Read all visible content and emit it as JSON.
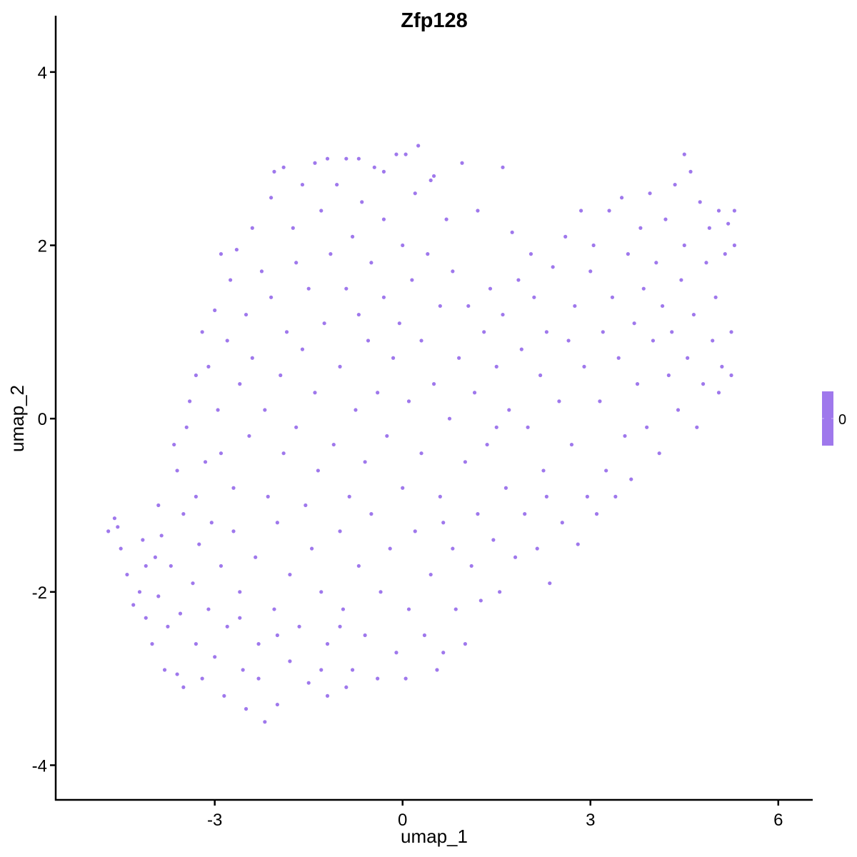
{
  "chart_data": {
    "type": "scatter",
    "title": "Zfp128",
    "xlabel": "umap_1",
    "ylabel": "umap_2",
    "xlim": [
      -5.54,
      6.55
    ],
    "ylim": [
      -4.4,
      4.65
    ],
    "xticks": [
      -3,
      0,
      3,
      6
    ],
    "yticks": [
      -4,
      -2,
      0,
      2,
      4
    ],
    "xtick_labels": [
      "-3",
      "0",
      "3",
      "6"
    ],
    "ytick_labels": [
      "-4",
      "-2",
      "0",
      "2",
      "4"
    ],
    "grid": false,
    "point_color": "#9f78ec",
    "legend": {
      "placement": "right",
      "type": "colorbar",
      "labels": [
        "0"
      ],
      "color": "#9f78ec"
    },
    "points": [
      [
        -4.7,
        -1.3
      ],
      [
        -4.6,
        -1.15
      ],
      [
        -4.55,
        -1.25
      ],
      [
        -4.5,
        -1.5
      ],
      [
        -4.4,
        -1.8
      ],
      [
        -4.3,
        -2.15
      ],
      [
        -4.2,
        -2.0
      ],
      [
        -4.15,
        -1.4
      ],
      [
        -4.1,
        -2.3
      ],
      [
        -4.0,
        -2.6
      ],
      [
        -3.95,
        -1.6
      ],
      [
        -3.9,
        -2.05
      ],
      [
        -3.85,
        -1.35
      ],
      [
        -3.8,
        -2.9
      ],
      [
        -3.75,
        -2.4
      ],
      [
        -3.7,
        -1.7
      ],
      [
        -3.65,
        -0.3
      ],
      [
        -3.6,
        -2.95
      ],
      [
        -3.55,
        -2.25
      ],
      [
        -3.5,
        -1.1
      ],
      [
        -3.5,
        -3.1
      ],
      [
        -3.45,
        -0.1
      ],
      [
        -3.4,
        0.2
      ],
      [
        -3.35,
        -1.9
      ],
      [
        -3.3,
        -2.6
      ],
      [
        -3.3,
        -0.9
      ],
      [
        -3.25,
        -1.45
      ],
      [
        -3.2,
        -3.0
      ],
      [
        -3.15,
        -0.5
      ],
      [
        -3.1,
        0.6
      ],
      [
        -3.1,
        -2.2
      ],
      [
        -3.05,
        -1.2
      ],
      [
        -3.0,
        -2.75
      ],
      [
        -3.0,
        1.25
      ],
      [
        -2.95,
        0.1
      ],
      [
        -2.9,
        -0.4
      ],
      [
        -2.9,
        -1.7
      ],
      [
        -2.85,
        -3.2
      ],
      [
        -2.8,
        0.9
      ],
      [
        -2.8,
        -2.4
      ],
      [
        -2.75,
        1.6
      ],
      [
        -2.7,
        -0.8
      ],
      [
        -2.7,
        -1.3
      ],
      [
        -2.65,
        1.95
      ],
      [
        -2.6,
        0.4
      ],
      [
        -2.6,
        -2.0
      ],
      [
        -2.55,
        -2.9
      ],
      [
        -2.5,
        -3.35
      ],
      [
        -2.5,
        1.2
      ],
      [
        -2.45,
        -0.2
      ],
      [
        -2.4,
        2.2
      ],
      [
        -2.4,
        0.7
      ],
      [
        -2.35,
        -1.6
      ],
      [
        -2.3,
        -2.6
      ],
      [
        -2.3,
        -3.0
      ],
      [
        -2.25,
        1.7
      ],
      [
        -2.2,
        -3.5
      ],
      [
        -2.2,
        0.1
      ],
      [
        -2.15,
        -0.9
      ],
      [
        -2.1,
        2.55
      ],
      [
        -2.1,
        1.4
      ],
      [
        -2.05,
        -2.2
      ],
      [
        -2.0,
        -1.2
      ],
      [
        -2.0,
        -3.3
      ],
      [
        -1.95,
        0.5
      ],
      [
        -1.9,
        2.9
      ],
      [
        -1.9,
        -0.4
      ],
      [
        -1.85,
        1.0
      ],
      [
        -1.8,
        -2.8
      ],
      [
        -1.8,
        -1.8
      ],
      [
        -1.75,
        2.2
      ],
      [
        -1.7,
        1.8
      ],
      [
        -1.7,
        -0.1
      ],
      [
        -1.65,
        -2.4
      ],
      [
        -1.6,
        2.7
      ],
      [
        -1.6,
        0.8
      ],
      [
        -1.55,
        -1.0
      ],
      [
        -1.5,
        -3.05
      ],
      [
        -1.5,
        1.5
      ],
      [
        -1.45,
        -1.5
      ],
      [
        -1.4,
        2.95
      ],
      [
        -1.4,
        0.3
      ],
      [
        -1.35,
        -0.6
      ],
      [
        -1.3,
        -2.0
      ],
      [
        -1.3,
        2.4
      ],
      [
        -1.25,
        1.1
      ],
      [
        -1.2,
        -2.6
      ],
      [
        -1.2,
        -3.2
      ],
      [
        -1.15,
        1.9
      ],
      [
        -1.1,
        -0.3
      ],
      [
        -1.05,
        2.7
      ],
      [
        -1.0,
        -1.3
      ],
      [
        -1.0,
        0.6
      ],
      [
        -0.95,
        -2.2
      ],
      [
        -0.9,
        1.5
      ],
      [
        -0.9,
        3.0
      ],
      [
        -0.85,
        -0.9
      ],
      [
        -0.8,
        2.1
      ],
      [
        -0.8,
        -2.9
      ],
      [
        -0.75,
        0.1
      ],
      [
        -0.7,
        -1.7
      ],
      [
        -0.7,
        1.2
      ],
      [
        -0.65,
        2.5
      ],
      [
        -0.6,
        -0.5
      ],
      [
        -0.6,
        -2.5
      ],
      [
        -0.55,
        0.9
      ],
      [
        -0.5,
        1.8
      ],
      [
        -0.5,
        -1.1
      ],
      [
        -0.45,
        2.9
      ],
      [
        -0.4,
        -3.0
      ],
      [
        -0.4,
        0.3
      ],
      [
        -0.35,
        -2.0
      ],
      [
        -0.3,
        1.4
      ],
      [
        -0.3,
        2.3
      ],
      [
        -0.25,
        -0.2
      ],
      [
        -0.2,
        -1.5
      ],
      [
        -0.15,
        0.7
      ],
      [
        -0.1,
        3.05
      ],
      [
        -0.1,
        -2.7
      ],
      [
        -0.05,
        1.1
      ],
      [
        0.0,
        -0.8
      ],
      [
        0.0,
        2.0
      ],
      [
        0.05,
        -3.0
      ],
      [
        0.1,
        0.2
      ],
      [
        0.1,
        -2.2
      ],
      [
        0.15,
        1.6
      ],
      [
        0.2,
        2.6
      ],
      [
        0.2,
        -1.3
      ],
      [
        0.25,
        3.15
      ],
      [
        0.3,
        -0.4
      ],
      [
        0.3,
        0.9
      ],
      [
        0.35,
        -2.5
      ],
      [
        0.4,
        1.9
      ],
      [
        0.45,
        -1.8
      ],
      [
        0.5,
        0.4
      ],
      [
        0.5,
        2.8
      ],
      [
        0.55,
        -2.9
      ],
      [
        0.6,
        -0.9
      ],
      [
        0.6,
        1.3
      ],
      [
        0.65,
        -2.7
      ],
      [
        0.7,
        2.3
      ],
      [
        0.75,
        0.0
      ],
      [
        0.8,
        -1.5
      ],
      [
        0.8,
        1.7
      ],
      [
        0.85,
        -2.2
      ],
      [
        0.9,
        0.7
      ],
      [
        0.95,
        2.95
      ],
      [
        1.0,
        -0.5
      ],
      [
        1.0,
        -2.6
      ],
      [
        1.05,
        1.3
      ],
      [
        1.1,
        -1.7
      ],
      [
        1.15,
        0.3
      ],
      [
        1.2,
        2.4
      ],
      [
        1.2,
        -1.1
      ],
      [
        1.25,
        -2.1
      ],
      [
        1.3,
        1.0
      ],
      [
        1.35,
        -0.3
      ],
      [
        1.4,
        1.5
      ],
      [
        1.45,
        -1.4
      ],
      [
        1.5,
        0.6
      ],
      [
        1.55,
        -2.0
      ],
      [
        1.6,
        2.9
      ],
      [
        1.6,
        1.2
      ],
      [
        1.65,
        -0.8
      ],
      [
        1.7,
        0.1
      ],
      [
        1.75,
        2.15
      ],
      [
        1.8,
        -1.6
      ],
      [
        1.85,
        1.6
      ],
      [
        1.9,
        0.8
      ],
      [
        1.95,
        -1.1
      ],
      [
        2.0,
        -0.1
      ],
      [
        2.05,
        1.9
      ],
      [
        2.1,
        1.4
      ],
      [
        2.15,
        -1.5
      ],
      [
        2.2,
        0.5
      ],
      [
        2.25,
        -0.6
      ],
      [
        2.3,
        1.0
      ],
      [
        2.35,
        -1.9
      ],
      [
        2.4,
        1.75
      ],
      [
        2.5,
        0.2
      ],
      [
        2.55,
        -1.2
      ],
      [
        2.6,
        2.1
      ],
      [
        2.65,
        0.9
      ],
      [
        2.7,
        -0.3
      ],
      [
        2.75,
        1.3
      ],
      [
        2.8,
        -1.45
      ],
      [
        2.85,
        2.4
      ],
      [
        2.9,
        0.6
      ],
      [
        2.95,
        -0.9
      ],
      [
        3.0,
        1.7
      ],
      [
        3.05,
        2.0
      ],
      [
        3.1,
        -1.1
      ],
      [
        3.15,
        0.2
      ],
      [
        3.2,
        1.0
      ],
      [
        3.25,
        -0.6
      ],
      [
        3.3,
        2.4
      ],
      [
        3.35,
        1.4
      ],
      [
        3.4,
        -0.9
      ],
      [
        3.45,
        0.7
      ],
      [
        3.5,
        2.55
      ],
      [
        3.55,
        -0.2
      ],
      [
        3.6,
        1.9
      ],
      [
        3.65,
        -0.7
      ],
      [
        3.7,
        1.1
      ],
      [
        3.75,
        0.4
      ],
      [
        3.8,
        2.2
      ],
      [
        3.85,
        1.5
      ],
      [
        3.9,
        -0.1
      ],
      [
        3.95,
        2.6
      ],
      [
        4.0,
        0.9
      ],
      [
        4.05,
        1.8
      ],
      [
        4.1,
        -0.4
      ],
      [
        4.15,
        1.3
      ],
      [
        4.2,
        2.3
      ],
      [
        4.25,
        0.5
      ],
      [
        4.3,
        1.0
      ],
      [
        4.35,
        2.7
      ],
      [
        4.4,
        0.1
      ],
      [
        4.45,
        1.6
      ],
      [
        4.5,
        3.05
      ],
      [
        4.5,
        2.0
      ],
      [
        4.55,
        0.7
      ],
      [
        4.6,
        2.85
      ],
      [
        4.65,
        1.2
      ],
      [
        4.7,
        -0.1
      ],
      [
        4.75,
        2.5
      ],
      [
        4.8,
        0.4
      ],
      [
        4.85,
        1.8
      ],
      [
        4.9,
        2.2
      ],
      [
        4.95,
        0.9
      ],
      [
        5.0,
        1.4
      ],
      [
        5.05,
        2.4
      ],
      [
        5.1,
        0.6
      ],
      [
        5.15,
        1.9
      ],
      [
        5.2,
        2.25
      ],
      [
        5.25,
        1.0
      ],
      [
        5.3,
        2.0
      ],
      [
        5.3,
        2.4
      ],
      [
        5.25,
        0.5
      ],
      [
        5.05,
        0.3
      ],
      [
        -2.05,
        2.85
      ],
      [
        -1.2,
        3.0
      ],
      [
        -0.7,
        3.0
      ],
      [
        -0.3,
        2.85
      ],
      [
        0.05,
        3.05
      ],
      [
        0.45,
        2.75
      ],
      [
        -2.9,
        1.9
      ],
      [
        -3.2,
        1.0
      ],
      [
        -3.3,
        0.5
      ],
      [
        -3.6,
        -0.6
      ],
      [
        -3.9,
        -1.0
      ],
      [
        -4.1,
        -1.7
      ],
      [
        -1.3,
        -2.9
      ],
      [
        -0.9,
        -3.1
      ],
      [
        -2.6,
        -2.3
      ],
      [
        -2.0,
        -2.5
      ],
      [
        -1.0,
        -2.4
      ],
      [
        0.65,
        -1.2
      ],
      [
        1.5,
        -0.1
      ],
      [
        2.3,
        -0.9
      ]
    ]
  }
}
